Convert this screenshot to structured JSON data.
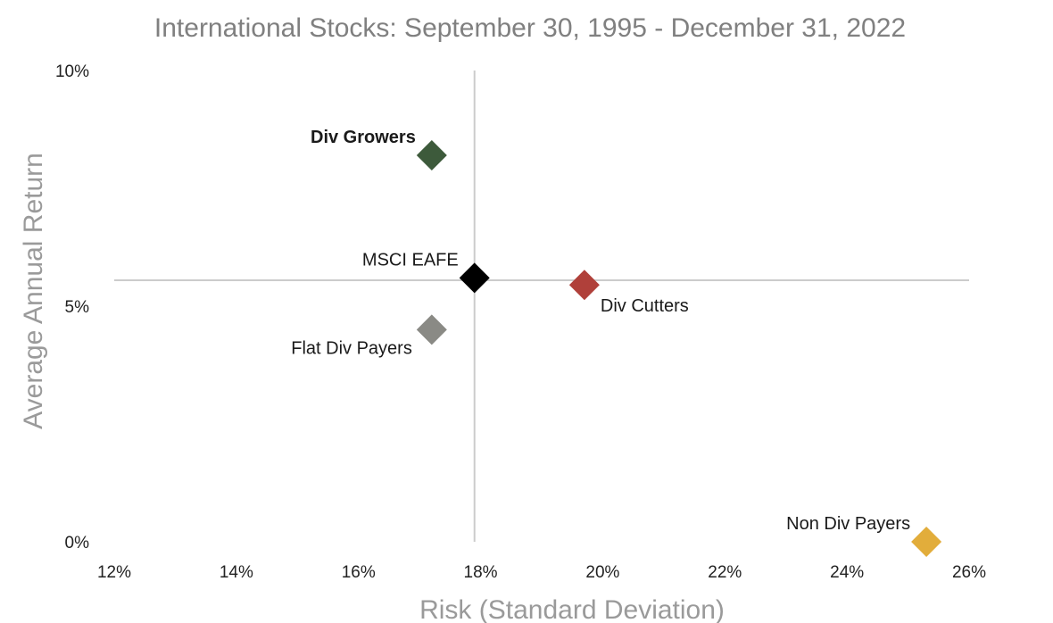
{
  "chart_data": {
    "type": "scatter",
    "title": "International Stocks: September 30, 1995 - December 31, 2022",
    "xlabel": "Risk (Standard Deviation)",
    "ylabel": "Average Annual Return",
    "xlim": [
      12,
      26
    ],
    "ylim": [
      0,
      10
    ],
    "x_ticks": [
      "12%",
      "14%",
      "16%",
      "18%",
      "20%",
      "22%",
      "24%",
      "26%"
    ],
    "y_ticks": [
      "0%",
      "5%",
      "10%"
    ],
    "grid": false,
    "reference_lines": {
      "x": 17.9,
      "y": 5.55
    },
    "points": [
      {
        "label": "Div Growers",
        "x": 17.2,
        "y": 8.2,
        "color": "#3d5a3b",
        "label_pos": "left-above",
        "bold": true
      },
      {
        "label": "MSCI EAFE",
        "x": 17.9,
        "y": 5.6,
        "color": "#000000",
        "label_pos": "left-above",
        "bold": false
      },
      {
        "label": "Div Cutters",
        "x": 19.7,
        "y": 5.45,
        "color": "#b0403a",
        "label_pos": "right-below",
        "bold": false
      },
      {
        "label": "Flat Div Payers",
        "x": 17.2,
        "y": 4.5,
        "color": "#8a8a85",
        "label_pos": "left-below",
        "bold": false
      },
      {
        "label": "Non Div Payers",
        "x": 25.3,
        "y": 0.0,
        "color": "#e2ad3b",
        "label_pos": "left-above",
        "bold": false
      }
    ]
  }
}
